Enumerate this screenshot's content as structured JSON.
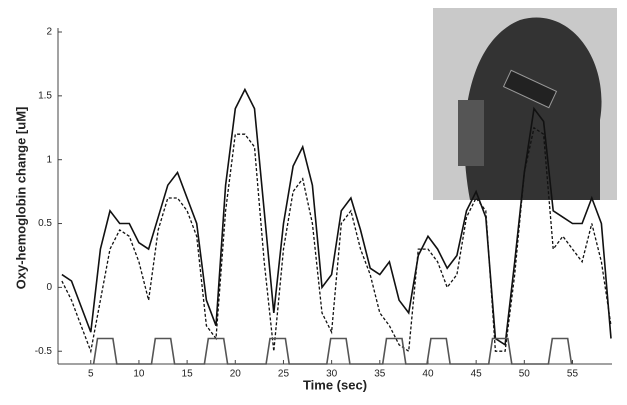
{
  "chart_data": {
    "type": "line",
    "x_label": "Time (sec)",
    "y_label": "Oxy-hemoglobin change [uM]",
    "x": [
      2,
      3,
      4,
      5,
      6,
      7,
      8,
      9,
      10,
      11,
      12,
      13,
      14,
      15,
      16,
      17,
      18,
      19,
      20,
      21,
      22,
      23,
      24,
      25,
      26,
      27,
      28,
      29,
      30,
      31,
      32,
      33,
      34,
      35,
      36,
      37,
      38,
      39,
      40,
      41,
      42,
      43,
      44,
      45,
      46,
      47,
      48,
      49,
      50,
      51,
      52,
      53,
      54,
      55,
      56,
      57,
      58,
      59
    ],
    "series": [
      {
        "color": "#111111",
        "style": "solid",
        "values": [
          0.1,
          0.05,
          -0.15,
          -0.35,
          0.3,
          0.6,
          0.5,
          0.5,
          0.35,
          0.3,
          0.55,
          0.8,
          0.9,
          0.7,
          0.5,
          -0.1,
          -0.3,
          0.8,
          1.4,
          1.55,
          1.4,
          0.6,
          -0.2,
          0.5,
          0.95,
          1.1,
          0.8,
          0.0,
          0.1,
          0.6,
          0.7,
          0.45,
          0.15,
          0.1,
          0.2,
          -0.1,
          -0.2,
          0.25,
          0.4,
          0.3,
          0.15,
          0.25,
          0.6,
          0.75,
          0.55,
          -0.4,
          -0.45,
          0.2,
          0.9,
          1.4,
          1.3,
          0.6,
          0.55,
          0.5,
          0.5,
          0.7,
          0.5,
          -0.4
        ]
      },
      {
        "color": "#111111",
        "style": "dashed",
        "values": [
          0.05,
          -0.1,
          -0.3,
          -0.5,
          -0.1,
          0.3,
          0.45,
          0.4,
          0.2,
          -0.1,
          0.45,
          0.7,
          0.7,
          0.6,
          0.4,
          -0.3,
          -0.4,
          0.6,
          1.2,
          1.2,
          1.1,
          0.2,
          -0.5,
          0.3,
          0.75,
          0.85,
          0.5,
          -0.2,
          -0.35,
          0.5,
          0.6,
          0.3,
          0.1,
          -0.2,
          -0.3,
          -0.45,
          -0.5,
          0.3,
          0.3,
          0.2,
          0.0,
          0.1,
          0.55,
          0.7,
          0.6,
          -0.5,
          -0.5,
          0.1,
          0.9,
          1.25,
          1.2,
          0.3,
          0.4,
          0.3,
          0.2,
          0.5,
          0.2,
          -0.3
        ]
      },
      {
        "color": "#555555",
        "style": "solid",
        "x": [
          5.3,
          5.7,
          7.3,
          7.7,
          11.3,
          11.7,
          13.3,
          13.7,
          16.8,
          17.2,
          18.8,
          19.2,
          23.2,
          23.6,
          25.2,
          25.6,
          29.5,
          29.9,
          31.5,
          31.9,
          35.3,
          35.7,
          37.3,
          37.7,
          39.9,
          40.3,
          41.9,
          42.3,
          46.3,
          46.7,
          48.3,
          48.7,
          52.5,
          52.9,
          54.5,
          54.9
        ],
        "values": [
          -0.6,
          -0.4,
          -0.4,
          -0.6,
          -0.6,
          -0.4,
          -0.4,
          -0.6,
          -0.6,
          -0.4,
          -0.4,
          -0.6,
          -0.6,
          -0.4,
          -0.4,
          -0.6,
          -0.6,
          -0.4,
          -0.4,
          -0.6,
          -0.6,
          -0.4,
          -0.4,
          -0.6,
          -0.6,
          -0.4,
          -0.4,
          -0.6,
          -0.6,
          -0.4,
          -0.4,
          -0.6,
          -0.6,
          -0.4,
          -0.4,
          -0.6
        ]
      }
    ],
    "xlim": [
      1.6,
      59.1
    ],
    "ylim": [
      -0.6,
      2
    ],
    "xticks": [
      5,
      10,
      15,
      20,
      25,
      30,
      35,
      40,
      45,
      50,
      55
    ],
    "yticks": [
      -0.5,
      0,
      0.5,
      1,
      1.5,
      2
    ]
  }
}
